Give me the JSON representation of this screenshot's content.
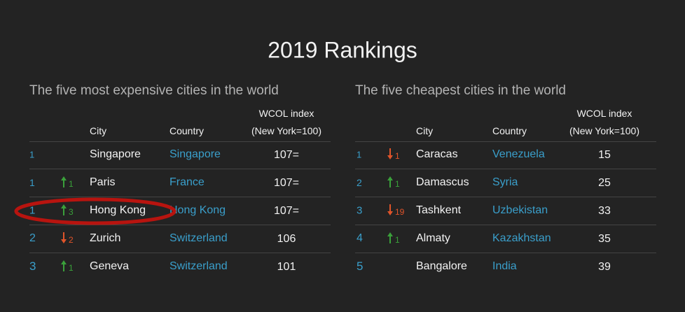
{
  "title": "2019 Rankings",
  "tables": [
    {
      "title": "The five most expensive cities in the world",
      "headers": {
        "city": "City",
        "country": "Country",
        "index": [
          "WCOL index",
          "(New York=100)"
        ]
      },
      "rows": [
        {
          "rank": 1,
          "city": "Singapore",
          "country": "Singapore",
          "index": "107="
        },
        {
          "rank": 1,
          "change": {
            "direction": "up",
            "amount": 1
          },
          "city": "Paris",
          "country": "France",
          "index": "107="
        },
        {
          "rank": 1,
          "change": {
            "direction": "up",
            "amount": 3
          },
          "city": "Hong Kong",
          "country": "Hong Kong",
          "index": "107=",
          "highlight": true
        },
        {
          "rank": 2,
          "change": {
            "direction": "down",
            "amount": 2
          },
          "city": "Zurich",
          "country": "Switzerland",
          "index": 106
        },
        {
          "rank": 3,
          "change": {
            "direction": "up",
            "amount": 1
          },
          "city": "Geneva",
          "country": "Switzerland",
          "index": 101
        }
      ]
    },
    {
      "title": "The five cheapest cities in the world",
      "headers": {
        "city": "City",
        "country": "Country",
        "index": [
          "WCOL index",
          "(New York=100)"
        ]
      },
      "rows": [
        {
          "rank": 1,
          "change": {
            "direction": "down",
            "amount": 1
          },
          "city": "Caracas",
          "country": "Venezuela",
          "index": 15
        },
        {
          "rank": 2,
          "change": {
            "direction": "up",
            "amount": 1
          },
          "city": "Damascus",
          "country": "Syria",
          "index": 25
        },
        {
          "rank": 3,
          "change": {
            "direction": "down",
            "amount": 19
          },
          "city": "Tashkent",
          "country": "Uzbekistan",
          "index": 33
        },
        {
          "rank": 4,
          "change": {
            "direction": "up",
            "amount": 1
          },
          "city": "Almaty",
          "country": "Kazakhstan",
          "index": 35
        },
        {
          "rank": 5,
          "city": "Bangalore",
          "country": "India",
          "index": 39
        }
      ]
    }
  ]
}
